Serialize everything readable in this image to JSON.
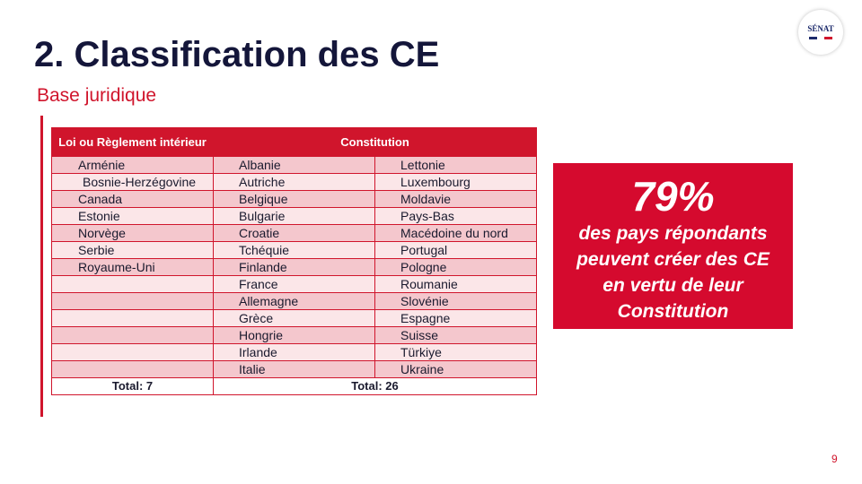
{
  "slide": {
    "title": "2. Classification des CE",
    "subtitle": "Base juridique",
    "page_number": "9"
  },
  "logo": {
    "text": "SÉNAT"
  },
  "table": {
    "header_col1": "Loi ou Règlement intérieur",
    "header_col2": "Constitution",
    "rows": [
      [
        "Arménie",
        "Albanie",
        "Lettonie"
      ],
      [
        "Bosnie-Herzégovine",
        "Autriche",
        "Luxembourg"
      ],
      [
        "Canada",
        "Belgique",
        "Moldavie"
      ],
      [
        "Estonie",
        "Bulgarie",
        "Pays-Bas"
      ],
      [
        "Norvège",
        "Croatie",
        "Macédoine du nord"
      ],
      [
        "Serbie",
        "Tchéquie",
        "Portugal"
      ],
      [
        "Royaume-Uni",
        "Finlande",
        "Pologne"
      ],
      [
        "",
        "France",
        "Roumanie"
      ],
      [
        "",
        "Allemagne",
        "Slovénie"
      ],
      [
        "",
        "Grèce",
        "Espagne"
      ],
      [
        "",
        "Hongrie",
        "Suisse"
      ],
      [
        "",
        "Irlande",
        "Türkiye"
      ],
      [
        "",
        "Italie",
        "Ukraine"
      ]
    ],
    "total_col1": "Total: 7",
    "total_col2": "Total: 26"
  },
  "callout": {
    "percent": "79%",
    "line1": "des pays répondants",
    "line2": "peuvent créer des CE",
    "line3": "en vertu de leur",
    "line4": "Constitution"
  },
  "colors": {
    "accent": "#d0152c",
    "title": "#14163a",
    "row_dark": "#f4c7cd",
    "row_light": "#fbe6e8"
  }
}
